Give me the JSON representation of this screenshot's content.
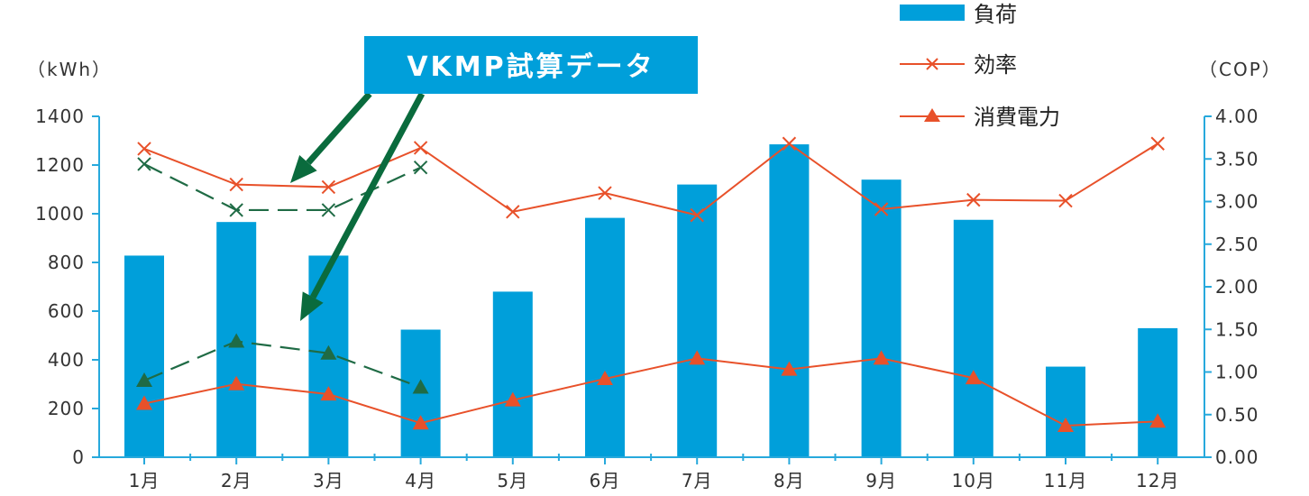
{
  "chart_data": {
    "type": "bar",
    "categories": [
      "1月",
      "2月",
      "3月",
      "4月",
      "5月",
      "6月",
      "7月",
      "8月",
      "9月",
      "10月",
      "11月",
      "12月"
    ],
    "left_axis": {
      "unit_label": "（kWh）",
      "ylim": [
        0,
        1400
      ],
      "ticks": [
        0,
        200,
        400,
        600,
        800,
        1000,
        1200,
        1400
      ],
      "tick_labels": [
        "0",
        "200",
        "400",
        "600",
        "800",
        "1000",
        "1200",
        "1400"
      ]
    },
    "right_axis": {
      "unit_label": "（COP）",
      "ylim": [
        0,
        4
      ],
      "ticks": [
        0,
        0.5,
        1,
        1.5,
        2,
        2.5,
        3,
        3.5,
        4
      ],
      "tick_labels": [
        "0.00",
        "0.50",
        "1.00",
        "1.50",
        "2.00",
        "2.50",
        "3.00",
        "3.50",
        "4.00"
      ]
    },
    "series": [
      {
        "name": "負荷",
        "type": "bar",
        "axis": "left",
        "color": "#009fda",
        "values": [
          828,
          966,
          828,
          524,
          680,
          983,
          1120,
          1285,
          1140,
          975,
          372,
          530
        ]
      },
      {
        "name": "効率",
        "type": "line",
        "axis": "right",
        "marker": "x",
        "color": "#e8512a",
        "values": [
          3.62,
          3.2,
          3.17,
          3.63,
          2.88,
          3.1,
          2.84,
          3.68,
          2.91,
          3.02,
          3.01,
          3.68
        ]
      },
      {
        "name": "消費電力",
        "type": "line",
        "axis": "right",
        "marker": "triangle",
        "color": "#e8512a",
        "values": [
          0.63,
          0.86,
          0.74,
          0.4,
          0.67,
          0.92,
          1.16,
          1.03,
          1.16,
          0.93,
          0.37,
          0.42
        ]
      }
    ],
    "vkmp_series": [
      {
        "label": "VKMP 効率",
        "marker": "x",
        "color": "#1f6b45",
        "values": [
          3.44,
          2.9,
          2.9,
          3.4
        ]
      },
      {
        "label": "VKMP 消費電力",
        "marker": "triangle",
        "color": "#1f6b45",
        "values": [
          0.9,
          1.36,
          1.22,
          0.82
        ]
      }
    ],
    "legend": {
      "position": "top-right",
      "entries": [
        "負荷",
        "効率",
        "消費電力"
      ]
    },
    "annotation": {
      "text": "VKMP試算データ",
      "color": "#009fda"
    },
    "grid": false
  }
}
